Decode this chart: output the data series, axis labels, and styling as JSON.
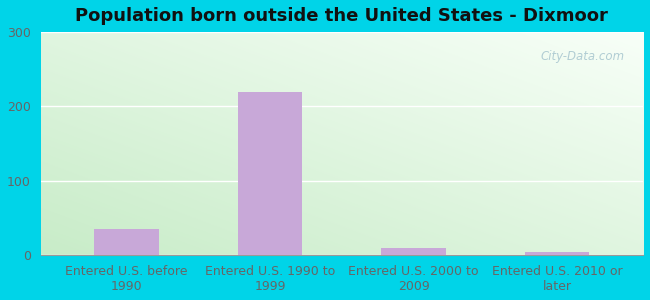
{
  "title": "Population born outside the United States - Dixmoor",
  "categories": [
    "Entered U.S. before\n1990",
    "Entered U.S. 1990 to\n1999",
    "Entered U.S. 2000 to\n2009",
    "Entered U.S. 2010 or\nlater"
  ],
  "values": [
    35,
    220,
    10,
    5
  ],
  "bar_color": "#c8a8d8",
  "ylim": [
    0,
    300
  ],
  "yticks": [
    0,
    100,
    200,
    300
  ],
  "background_outer": "#00d4e8",
  "grid_color": "#ffffff",
  "watermark": "City-Data.com",
  "title_fontsize": 13,
  "tick_fontsize": 9,
  "grad_topleft": "#e8f5e8",
  "grad_topright": "#f8fff8",
  "grad_bottomleft": "#c8ecc8",
  "grad_bottomright": "#eef8f0"
}
